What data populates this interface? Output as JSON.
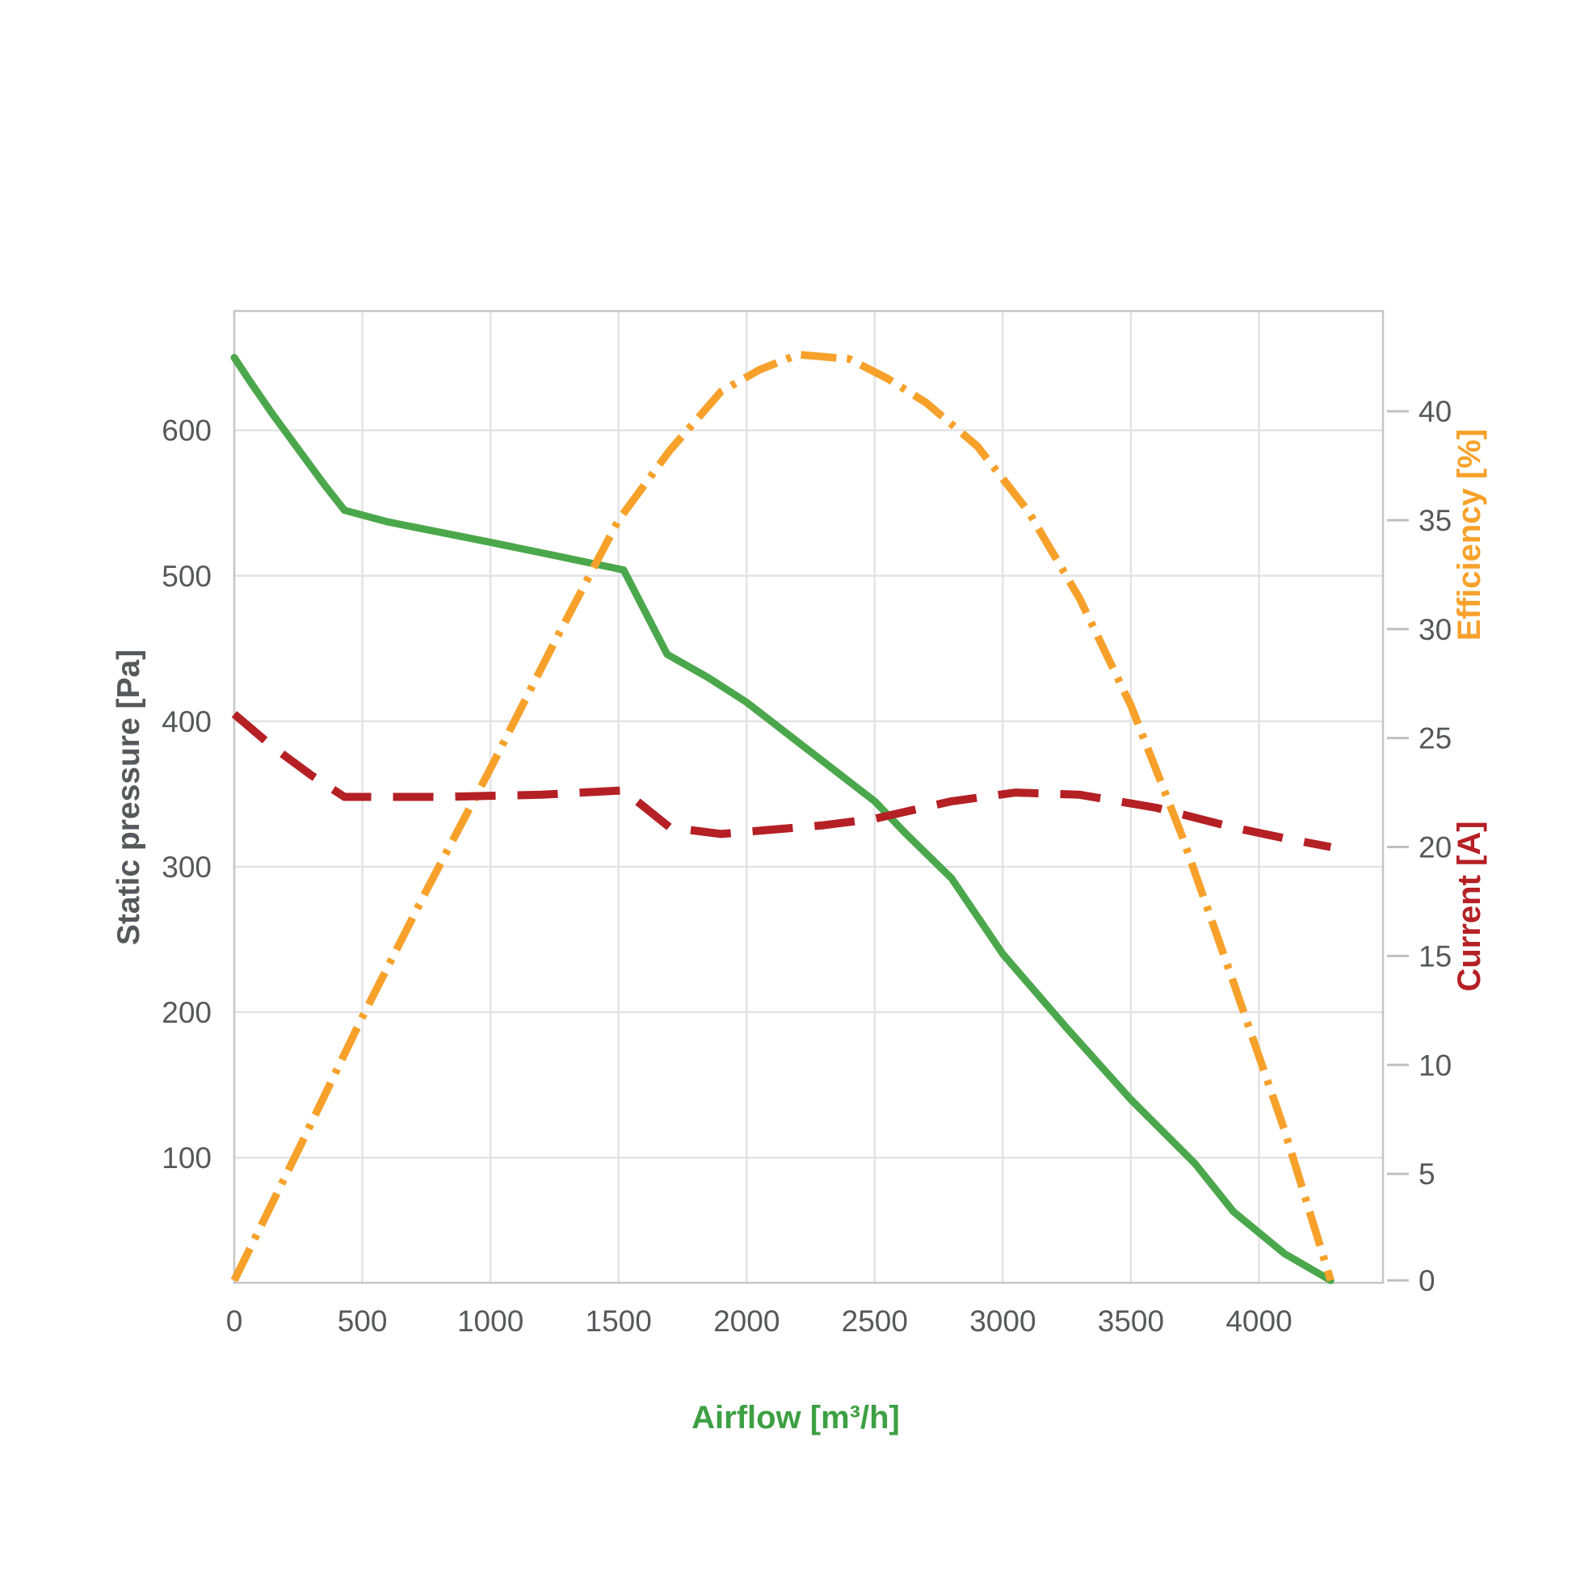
{
  "chart_data": {
    "type": "line",
    "title": "",
    "xlabel": "Airflow [m³/h]",
    "grid": true,
    "legend_position": "none",
    "background": "#ffffff",
    "grid_color": "#e3e3e3",
    "border_color": "#c6c6c6",
    "tick_label_color": "#57585b",
    "x_axis": {
      "min": 0,
      "max": 4484,
      "ticks": [
        0,
        500,
        1000,
        1500,
        2000,
        2500,
        3000,
        3500,
        4000
      ],
      "gridlines": true
    },
    "y_left": {
      "label": "Static pressure [Pa]",
      "color": "#57585b",
      "axis_bottom": 14,
      "axis_top": 682,
      "ticks": [
        100,
        200,
        300,
        400,
        500,
        600
      ],
      "gridlines": true
    },
    "y_right": {
      "axis_bottom": 0,
      "axis_top": 44.6,
      "ticks": [
        0,
        5,
        10,
        15,
        20,
        25,
        30,
        35,
        40
      ],
      "tick_mark_color": "#c0c0c0",
      "gridlines": false
    },
    "y_right_efficiency": {
      "label": "Efficiency [%]",
      "color": "#f7a12b"
    },
    "y_right_current": {
      "label": "Current [A]",
      "color": "#b52025"
    },
    "series": [
      {
        "name": "Static pressure",
        "unit": "Pa",
        "y_axis": "left",
        "color": "#4ba74b",
        "line_style": "solid",
        "points": [
          [
            0,
            650
          ],
          [
            60,
            634
          ],
          [
            150,
            611
          ],
          [
            250,
            587
          ],
          [
            350,
            563
          ],
          [
            430,
            545
          ],
          [
            600,
            537
          ],
          [
            800,
            530
          ],
          [
            1000,
            523
          ],
          [
            1250,
            514
          ],
          [
            1520,
            504
          ],
          [
            1690,
            446
          ],
          [
            1850,
            430
          ],
          [
            2000,
            413
          ],
          [
            2250,
            379
          ],
          [
            2500,
            345
          ],
          [
            2620,
            323
          ],
          [
            2800,
            292
          ],
          [
            3000,
            240
          ],
          [
            3250,
            189
          ],
          [
            3500,
            140
          ],
          [
            3750,
            96
          ],
          [
            3900,
            63
          ],
          [
            4100,
            34
          ],
          [
            4280,
            0
          ]
        ]
      },
      {
        "name": "Efficiency",
        "unit": "%",
        "y_axis": "right",
        "color": "#f7a12b",
        "line_style": "dash-dot",
        "points": [
          [
            0,
            0
          ],
          [
            250,
            6.1
          ],
          [
            500,
            12.2
          ],
          [
            750,
            18.0
          ],
          [
            1000,
            23.6
          ],
          [
            1250,
            29.4
          ],
          [
            1500,
            35.0
          ],
          [
            1700,
            38.2
          ],
          [
            1900,
            40.9
          ],
          [
            2050,
            41.9
          ],
          [
            2200,
            42.6
          ],
          [
            2400,
            42.4
          ],
          [
            2550,
            41.5
          ],
          [
            2700,
            40.4
          ],
          [
            2900,
            38.4
          ],
          [
            3100,
            35.4
          ],
          [
            3300,
            31.4
          ],
          [
            3500,
            26.5
          ],
          [
            3700,
            20.5
          ],
          [
            3900,
            13.8
          ],
          [
            4100,
            7.0
          ],
          [
            4280,
            0
          ]
        ]
      },
      {
        "name": "Current",
        "unit": "A",
        "y_axis": "right",
        "color": "#b52025",
        "line_style": "dashed",
        "points": [
          [
            0,
            26.1
          ],
          [
            150,
            24.6
          ],
          [
            300,
            23.3
          ],
          [
            430,
            22.3
          ],
          [
            800,
            22.3
          ],
          [
            1200,
            22.4
          ],
          [
            1520,
            22.6
          ],
          [
            1700,
            20.9
          ],
          [
            1900,
            20.6
          ],
          [
            2100,
            20.8
          ],
          [
            2300,
            21.0
          ],
          [
            2500,
            21.3
          ],
          [
            2800,
            22.1
          ],
          [
            3050,
            22.5
          ],
          [
            3300,
            22.4
          ],
          [
            3600,
            21.8
          ],
          [
            3900,
            20.9
          ],
          [
            4100,
            20.4
          ],
          [
            4280,
            20.0
          ]
        ]
      }
    ]
  }
}
